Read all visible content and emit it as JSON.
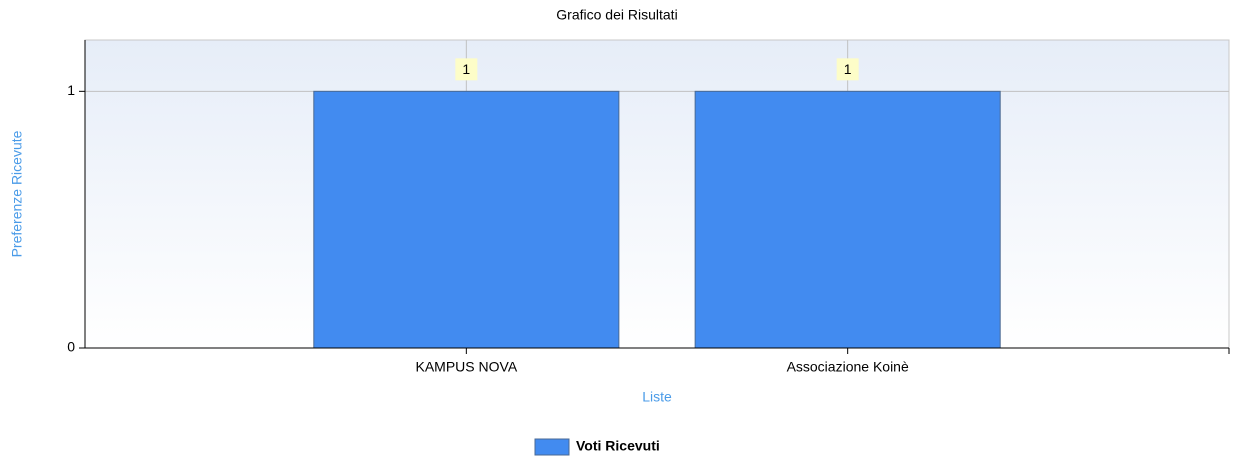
{
  "chart_data": {
    "type": "bar",
    "title": "Grafico dei Risultati",
    "xlabel": "Liste",
    "ylabel": "Preferenze Ricevute",
    "categories": [
      "KAMPUS NOVA",
      "Associazione Koinè"
    ],
    "series": [
      {
        "name": "Voti Ricevuti",
        "color": "#428bf0",
        "values": [
          1,
          1
        ]
      }
    ],
    "ylim": [
      0,
      1.2
    ],
    "yticks": [
      0,
      1
    ],
    "grid": true,
    "legend": "bottom"
  }
}
